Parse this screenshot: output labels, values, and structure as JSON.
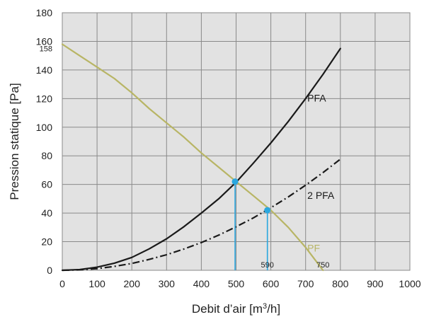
{
  "chart_data": {
    "type": "line",
    "xlabel": "Debit d’air [m³/h]",
    "ylabel": "Pression statique [Pa]",
    "xlim": [
      0,
      1000
    ],
    "ylim": [
      0,
      180
    ],
    "x_ticks": [
      "0",
      "100",
      "200",
      "300",
      "400",
      "500",
      "600",
      "700",
      "800",
      "900",
      "1000"
    ],
    "y_ticks": [
      "0",
      "20",
      "40",
      "60",
      "80",
      "100",
      "120",
      "140",
      "160",
      "180"
    ],
    "grid": true,
    "plot_background": "#e2e2e2",
    "grid_color": "#8a8a8a",
    "series": [
      {
        "name": "PFA",
        "color": "#1a1a1a",
        "style": "solid",
        "x": [
          0,
          50,
          100,
          150,
          200,
          250,
          300,
          350,
          400,
          450,
          500,
          550,
          600,
          650,
          700,
          750,
          800
        ],
        "y": [
          0,
          0.5,
          2.2,
          5,
          9,
          15,
          22,
          30.5,
          40,
          50,
          61.5,
          75,
          89,
          104,
          120,
          137,
          155
        ]
      },
      {
        "name": "2 PFA",
        "color": "#1a1a1a",
        "style": "dashdot",
        "x": [
          0,
          50,
          100,
          150,
          200,
          250,
          300,
          350,
          400,
          450,
          500,
          550,
          600,
          650,
          700,
          750,
          800
        ],
        "y": [
          0,
          0.3,
          1.2,
          2.7,
          4.8,
          7.6,
          10.9,
          14.9,
          19.4,
          24.6,
          30.4,
          36.7,
          43.7,
          51.3,
          59.5,
          68.3,
          77.7
        ]
      },
      {
        "name": "PF",
        "color": "#b8b565",
        "style": "solid",
        "x": [
          0,
          50,
          100,
          150,
          200,
          250,
          300,
          350,
          400,
          450,
          500,
          550,
          600,
          650,
          700,
          725,
          750
        ],
        "y": [
          158,
          150,
          142,
          134,
          124,
          113,
          103,
          93,
          82,
          72,
          62,
          52,
          42,
          30,
          16,
          8,
          0
        ]
      }
    ],
    "operating_points": [
      {
        "x": 497,
        "y": 62,
        "color": "#2aa7df"
      },
      {
        "x": 590,
        "y": 42,
        "color": "#2aa7df"
      }
    ],
    "annotations": {
      "pf_start_value": "158",
      "op2_x_value": "590",
      "pf_end_value": "750"
    }
  }
}
